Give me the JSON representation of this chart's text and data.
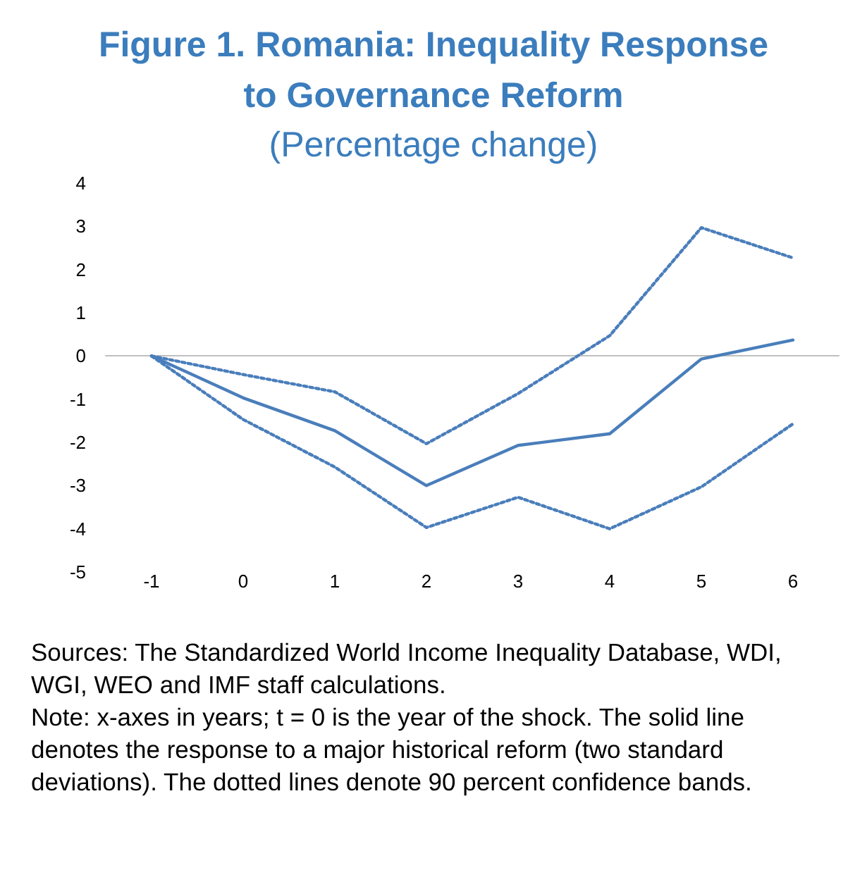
{
  "chart_data": {
    "type": "line",
    "title": "Figure 1. Romania: Inequality Response to Governance Reform",
    "subtitle": "(Percentage change)",
    "categories": [
      "-1",
      "0",
      "1",
      "2",
      "3",
      "4",
      "5",
      "6"
    ],
    "series": [
      {
        "color": "#4a7ebb",
        "line_style": "solid",
        "values": [
          0,
          -0.97,
          -1.73,
          -3.0,
          -2.07,
          -1.8,
          -0.07,
          0.37
        ]
      },
      {
        "color": "#4a7ebb",
        "line_style": "dotted",
        "values": [
          0,
          -0.43,
          -0.83,
          -2.03,
          -0.87,
          0.47,
          2.97,
          2.27
        ]
      },
      {
        "color": "#4a7ebb",
        "line_style": "dotted",
        "values": [
          0,
          -1.47,
          -2.57,
          -3.97,
          -3.27,
          -4.0,
          -3.03,
          -1.57
        ]
      }
    ],
    "ylim": [
      -5,
      4
    ],
    "yticks": [
      -5,
      -4,
      -3,
      -2,
      -1,
      0,
      1,
      2,
      3,
      4
    ],
    "marker": "none",
    "annotations": [
      "Sources: The Standardized World Income Inequality Database, WDI, WGI, WEO and IMF staff calculations.",
      "Note: x-axes in years; t = 0 is the year of the shock. The solid line denotes the response to a major historical reform (two standard deviations). The dotted lines denote 90 percent confidence bands."
    ]
  }
}
